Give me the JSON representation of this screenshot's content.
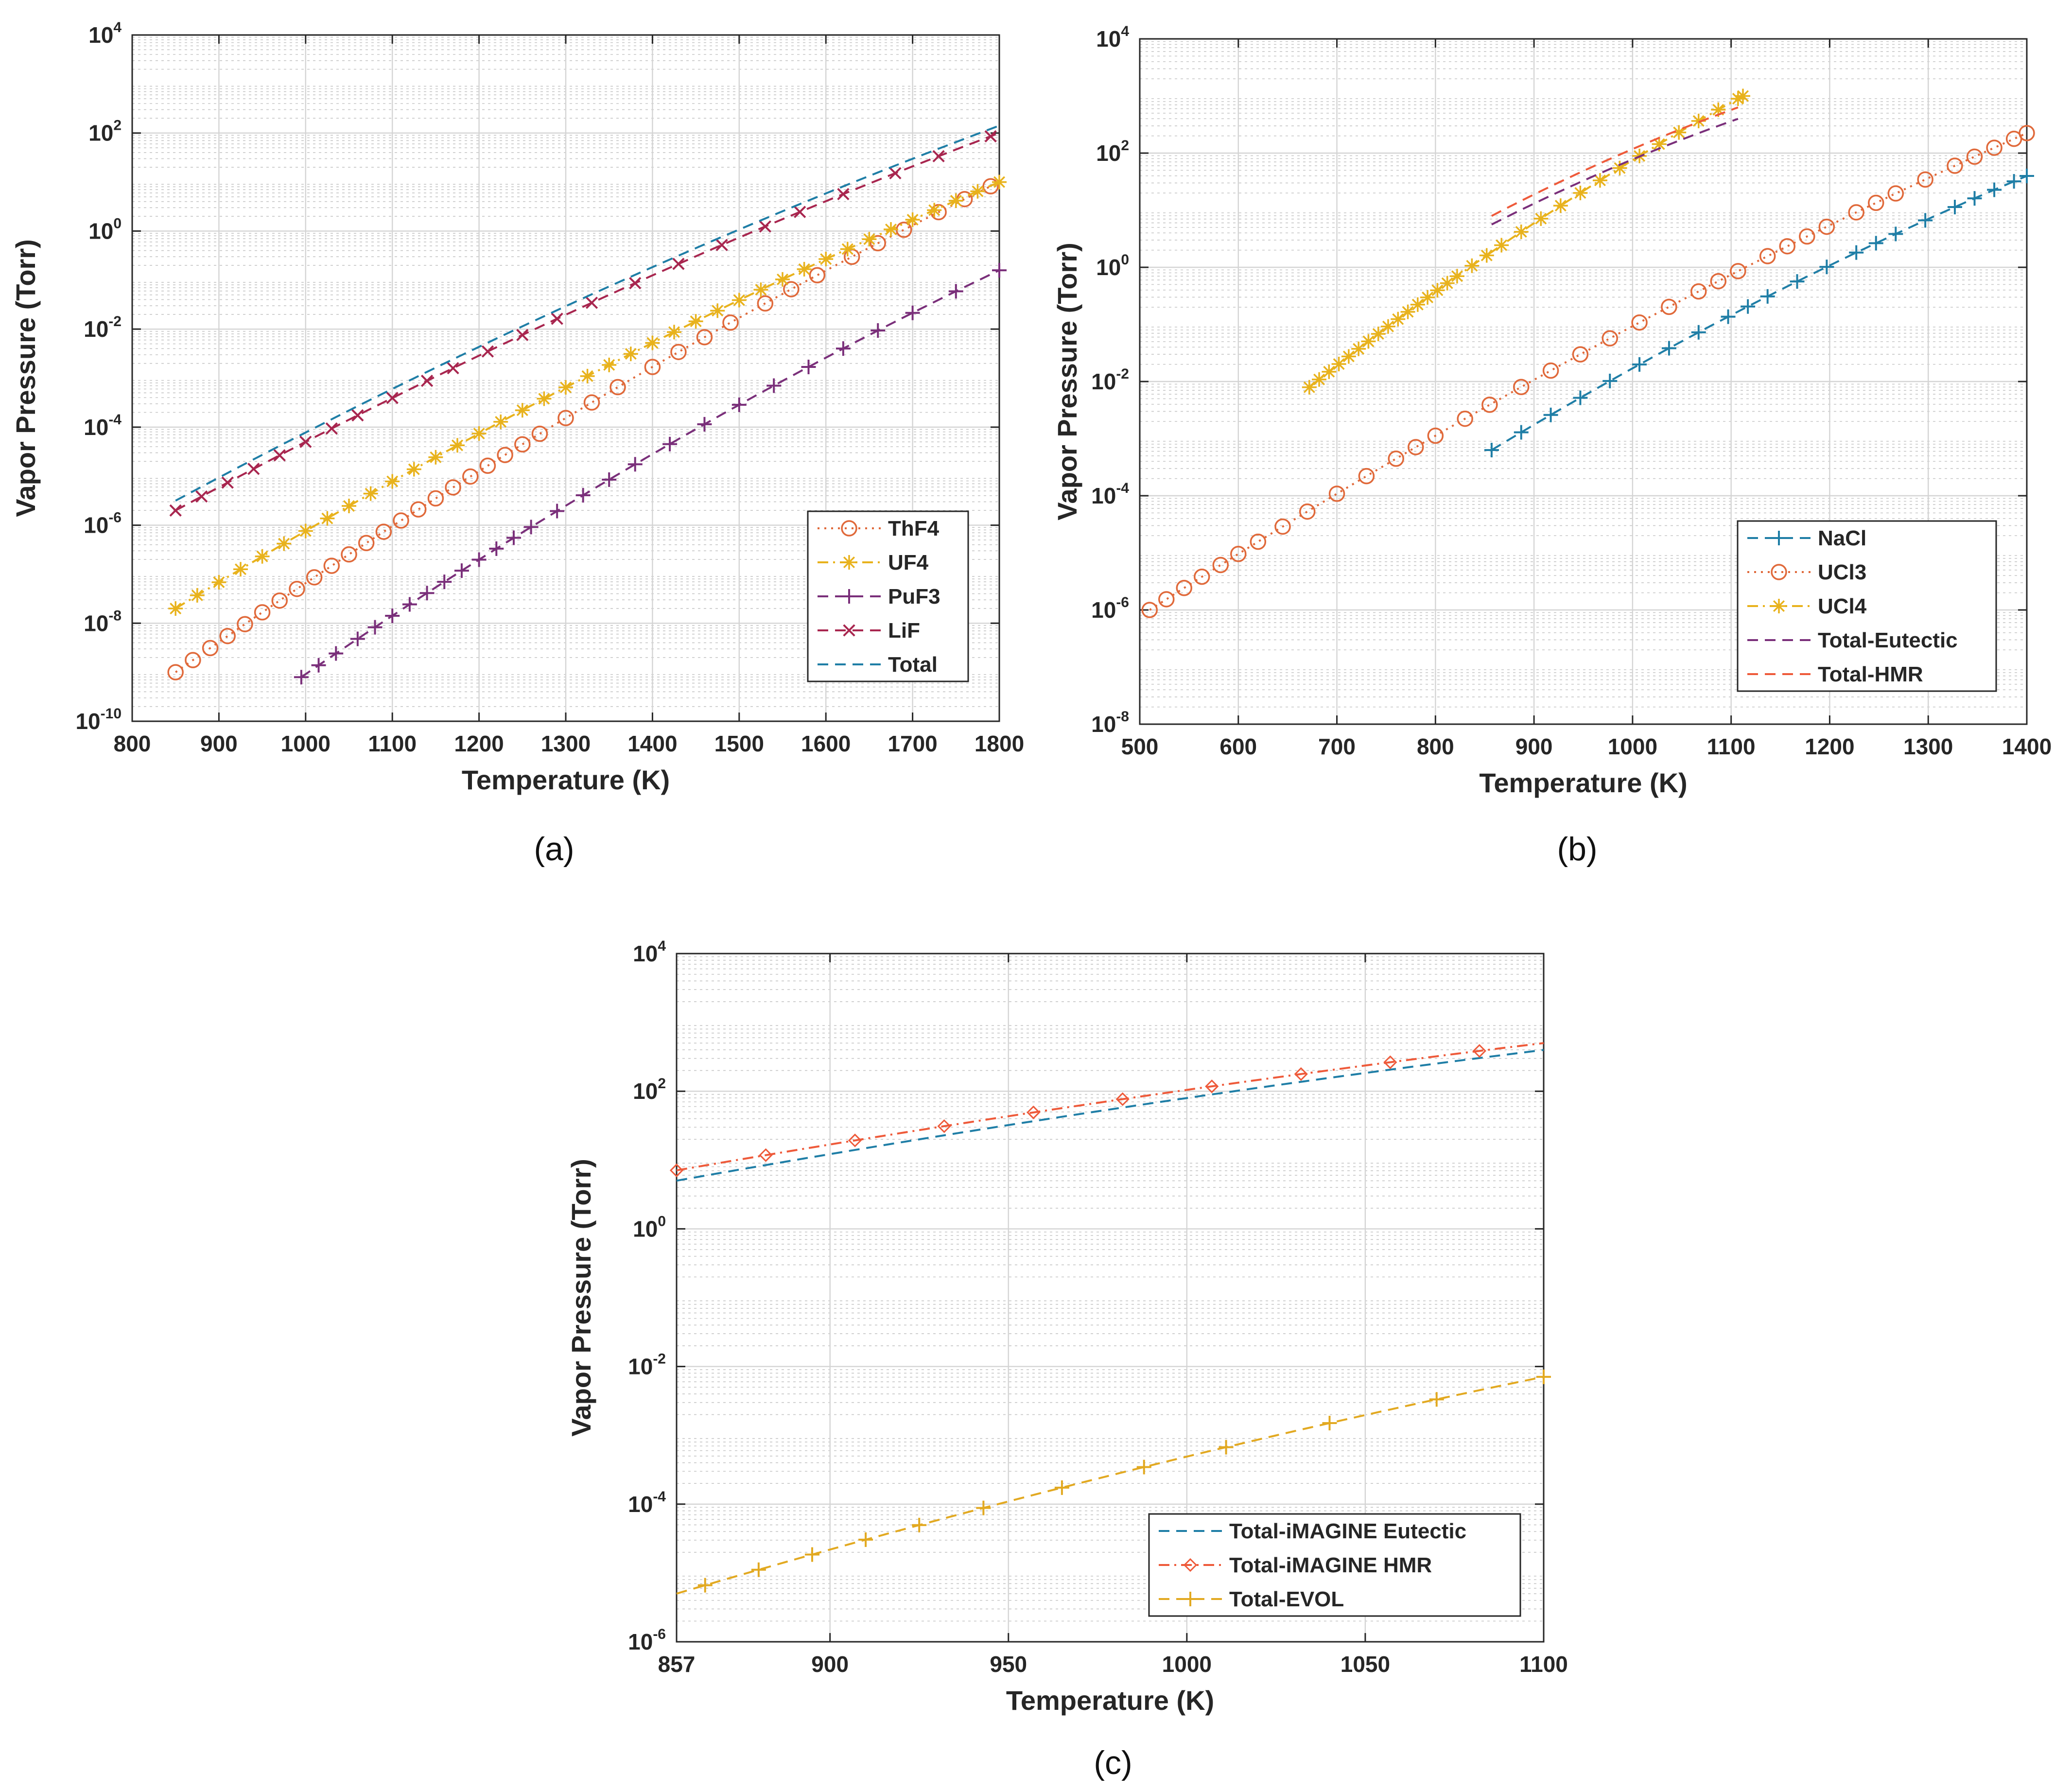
{
  "figure": {
    "panel_labels": [
      "(a)",
      "(b)",
      "(c)"
    ]
  },
  "colors": {
    "blue": "#1f7ea6",
    "orange": "#e0693a",
    "gold": "#e8b21c",
    "purple": "#7a2f7a",
    "crimson": "#a8264f",
    "total_hmr": "#ee5a3a",
    "evol": "#e2a921"
  },
  "chart_data": [
    {
      "id": "a",
      "panel_label": "(a)",
      "type": "line",
      "title": "",
      "xlabel": "Temperature (K)",
      "ylabel": "Vapor Pressure (Torr)",
      "xlim": [
        800,
        1800
      ],
      "ylim_exponents": [
        -10,
        4
      ],
      "xticks": [
        800,
        900,
        1000,
        1100,
        1200,
        1300,
        1400,
        1500,
        1600,
        1700,
        1800
      ],
      "yticks_exponents": [
        -10,
        -8,
        -6,
        -4,
        -2,
        0,
        2,
        4
      ],
      "grid": true,
      "legend_position": "bottom-right",
      "series": [
        {
          "name": "ThF4",
          "color": "orange",
          "line": "dotted",
          "marker": "circle",
          "x": [
            850,
            1800
          ],
          "log10_y": [
            -9.0,
            1.0
          ],
          "markers_x": [
            850,
            870,
            890,
            910,
            930,
            950,
            970,
            990,
            1010,
            1030,
            1050,
            1070,
            1090,
            1110,
            1130,
            1150,
            1170,
            1190,
            1210,
            1230,
            1250,
            1270,
            1300,
            1330,
            1360,
            1400,
            1430,
            1460,
            1490,
            1530,
            1560,
            1590,
            1630,
            1660,
            1690,
            1730,
            1760,
            1790
          ]
        },
        {
          "name": "UF4",
          "color": "gold",
          "line": "dashdot",
          "marker": "star",
          "x": [
            850,
            1800
          ],
          "log10_y": [
            -7.7,
            1.0
          ],
          "markers_x": [
            850,
            875,
            900,
            925,
            950,
            975,
            1000,
            1025,
            1050,
            1075,
            1100,
            1125,
            1150,
            1175,
            1200,
            1225,
            1250,
            1275,
            1300,
            1325,
            1350,
            1375,
            1400,
            1425,
            1450,
            1475,
            1500,
            1525,
            1550,
            1575,
            1600,
            1625,
            1650,
            1675,
            1700,
            1725,
            1750,
            1775,
            1800
          ]
        },
        {
          "name": "PuF3",
          "color": "purple",
          "line": "dashed",
          "marker": "plus",
          "x": [
            995,
            1800
          ],
          "log10_y": [
            -9.1,
            -0.8
          ],
          "markers_x": [
            995,
            1015,
            1035,
            1060,
            1080,
            1100,
            1120,
            1140,
            1160,
            1180,
            1200,
            1220,
            1240,
            1260,
            1290,
            1320,
            1350,
            1380,
            1420,
            1460,
            1500,
            1540,
            1580,
            1620,
            1660,
            1700,
            1750,
            1800
          ]
        },
        {
          "name": "LiF",
          "color": "crimson",
          "line": "dashed",
          "marker": "x",
          "x": [
            850,
            1800
          ],
          "log10_y": [
            -5.7,
            2.0
          ],
          "markers_x": [
            850,
            880,
            910,
            940,
            970,
            1000,
            1030,
            1060,
            1100,
            1140,
            1170,
            1210,
            1250,
            1290,
            1330,
            1380,
            1430,
            1480,
            1530,
            1570,
            1620,
            1680,
            1730,
            1790
          ]
        },
        {
          "name": "Total",
          "color": "blue",
          "line": "dashed",
          "marker": "none",
          "x": [
            850,
            1800
          ],
          "log10_y": [
            -5.5,
            2.15
          ]
        }
      ]
    },
    {
      "id": "b",
      "panel_label": "(b)",
      "type": "line",
      "title": "",
      "xlabel": "Temperature (K)",
      "ylabel": "Vapor Pressure (Torr)",
      "xlim": [
        500,
        1400
      ],
      "ylim_exponents": [
        -8,
        4
      ],
      "xticks": [
        500,
        600,
        700,
        800,
        900,
        1000,
        1100,
        1200,
        1300,
        1400
      ],
      "yticks_exponents": [
        -8,
        -6,
        -4,
        -2,
        0,
        2,
        4
      ],
      "grid": true,
      "legend_position": "bottom-right",
      "series": [
        {
          "name": "NaCl",
          "color": "blue",
          "line": "dashed",
          "marker": "plus",
          "x": [
            857,
            1400
          ],
          "log10_y": [
            -3.2,
            1.6
          ],
          "markers_x": [
            857,
            887,
            917,
            947,
            977,
            1007,
            1037,
            1067,
            1097,
            1117,
            1137,
            1167,
            1197,
            1227,
            1247,
            1267,
            1297,
            1327,
            1347,
            1367,
            1387,
            1400
          ]
        },
        {
          "name": "UCl3",
          "color": "orange",
          "line": "dotted",
          "marker": "circle",
          "x": [
            510,
            1400
          ],
          "log10_y": [
            -6.0,
            2.35
          ],
          "markers_x": [
            510,
            527,
            545,
            563,
            582,
            600,
            620,
            645,
            670,
            700,
            730,
            760,
            780,
            800,
            830,
            855,
            887,
            917,
            947,
            977,
            1007,
            1037,
            1067,
            1087,
            1107,
            1137,
            1157,
            1177,
            1197,
            1227,
            1247,
            1267,
            1297,
            1327,
            1347,
            1367,
            1387,
            1400
          ]
        },
        {
          "name": "UCl4",
          "color": "gold",
          "line": "dashdot",
          "marker": "star",
          "x": [
            672,
            1112
          ],
          "log10_y": [
            -2.1,
            3.0
          ],
          "markers_x": [
            672,
            682,
            692,
            702,
            712,
            722,
            732,
            742,
            752,
            762,
            772,
            782,
            792,
            802,
            812,
            822,
            837,
            852,
            867,
            887,
            907,
            927,
            947,
            967,
            987,
            1007,
            1027,
            1047,
            1067,
            1087,
            1107,
            1112
          ]
        },
        {
          "name": "Total-Eutectic",
          "color": "purple",
          "line": "dashed",
          "marker": "none",
          "x": [
            857,
            1107
          ],
          "log10_y": [
            0.75,
            2.6
          ]
        },
        {
          "name": "Total-HMR",
          "color": "total_hmr",
          "line": "dashed",
          "marker": "none",
          "x": [
            857,
            1107
          ],
          "log10_y": [
            0.9,
            2.8
          ]
        }
      ]
    },
    {
      "id": "c",
      "panel_label": "(c)",
      "type": "line",
      "title": "",
      "xlabel": "Temperature (K)",
      "ylabel": "Vapor Pressure (Torr)",
      "xlim": [
        857,
        1100
      ],
      "ylim_exponents": [
        -6,
        4
      ],
      "xticks": [
        857,
        900,
        950,
        1000,
        1050,
        1100
      ],
      "yticks_exponents": [
        -6,
        -4,
        -2,
        0,
        2,
        4
      ],
      "grid": true,
      "legend_position": "bottom-right",
      "series": [
        {
          "name": "Total-iMAGINE Eutectic",
          "color": "blue",
          "line": "dashed",
          "marker": "none",
          "x": [
            857,
            1100
          ],
          "log10_y": [
            0.7,
            2.6
          ]
        },
        {
          "name": "Total-iMAGINE HMR",
          "color": "total_hmr",
          "line": "dashdot",
          "marker": "diamond",
          "x": [
            857,
            1100
          ],
          "log10_y": [
            0.85,
            2.7
          ],
          "markers_x": [
            857,
            882,
            907,
            932,
            957,
            982,
            1007,
            1032,
            1057,
            1082
          ]
        },
        {
          "name": "Total-EVOL",
          "color": "evol",
          "line": "dashed",
          "marker": "plus",
          "x": [
            857,
            1100
          ],
          "log10_y": [
            -5.3,
            -2.15
          ],
          "markers_x": [
            865,
            880,
            895,
            910,
            925,
            943,
            965,
            988,
            1011,
            1040,
            1070,
            1100
          ]
        }
      ]
    }
  ]
}
